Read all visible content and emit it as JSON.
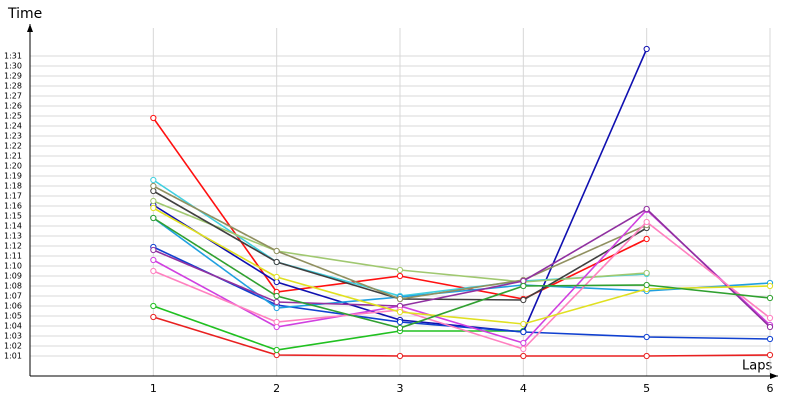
{
  "chart_data": {
    "type": "line",
    "y_label": "Time",
    "x_label": "Laps",
    "xlim": [
      0,
      6
    ],
    "xticks": [
      1,
      2,
      3,
      4,
      5,
      6
    ],
    "ylim": [
      59,
      93
    ],
    "yticks": [
      {
        "value": 61,
        "label": "1:01"
      },
      {
        "value": 62,
        "label": "1:02"
      },
      {
        "value": 63,
        "label": "1:03"
      },
      {
        "value": 64,
        "label": "1:04"
      },
      {
        "value": 65,
        "label": "1:05"
      },
      {
        "value": 66,
        "label": "1:06"
      },
      {
        "value": 67,
        "label": "1:07"
      },
      {
        "value": 68,
        "label": "1:08"
      },
      {
        "value": 69,
        "label": "1:09"
      },
      {
        "value": 70,
        "label": "1:10"
      },
      {
        "value": 71,
        "label": "1:11"
      },
      {
        "value": 72,
        "label": "1:12"
      },
      {
        "value": 73,
        "label": "1:13"
      },
      {
        "value": 74,
        "label": "1:14"
      },
      {
        "value": 75,
        "label": "1:15"
      },
      {
        "value": 76,
        "label": "1:16"
      },
      {
        "value": 77,
        "label": "1:17"
      },
      {
        "value": 78,
        "label": "1:18"
      },
      {
        "value": 79,
        "label": "1:19"
      },
      {
        "value": 80,
        "label": "1:20"
      },
      {
        "value": 81,
        "label": "1:21"
      },
      {
        "value": 82,
        "label": "1:22"
      },
      {
        "value": 83,
        "label": "1:23"
      },
      {
        "value": 84,
        "label": "1:24"
      },
      {
        "value": 85,
        "label": "1:25"
      },
      {
        "value": 86,
        "label": "1:26"
      },
      {
        "value": 87,
        "label": "1:27"
      },
      {
        "value": 88,
        "label": "1:28"
      },
      {
        "value": 89,
        "label": "1:29"
      },
      {
        "value": 90,
        "label": "1:30"
      },
      {
        "value": 91,
        "label": "1:31"
      }
    ],
    "grid": true,
    "x": [
      1,
      2,
      3,
      4,
      5,
      6
    ],
    "series": [
      {
        "color": "#e82020",
        "values": [
          64.9,
          61.1,
          61,
          61,
          61,
          61.1
        ]
      },
      {
        "color": "#20c020",
        "values": [
          66,
          61.6,
          63.5,
          63.5,
          null,
          null
        ]
      },
      {
        "color": "#ff1010",
        "values": [
          84.8,
          67.4,
          69,
          66.7,
          72.7,
          null
        ]
      },
      {
        "color": "#1010b0",
        "values": [
          76.1,
          68.4,
          64.6,
          63.4,
          91.7,
          null
        ]
      },
      {
        "color": "#1040d0",
        "values": [
          71.9,
          66.1,
          64.4,
          63.4,
          62.9,
          62.7
        ]
      },
      {
        "color": "#40d0e0",
        "values": [
          78.6,
          70.4,
          67,
          68.5,
          69.2,
          null
        ]
      },
      {
        "color": "#20a0e0",
        "values": [
          74.8,
          65.8,
          66.9,
          68.1,
          67.5,
          68.3
        ]
      },
      {
        "color": "#a0c870",
        "values": [
          76.5,
          71.5,
          69.6,
          68.4,
          69.3,
          null
        ]
      },
      {
        "color": "#404040",
        "values": [
          77.5,
          70.4,
          66.7,
          66.6,
          73.8,
          null
        ]
      },
      {
        "color": "#909060",
        "values": [
          78,
          71.5,
          66.7,
          68.6,
          74.1,
          null
        ]
      },
      {
        "color": "#d040e0",
        "values": [
          70.6,
          63.9,
          66,
          62.3,
          75.6,
          64.1
        ]
      },
      {
        "color": "#9030a0",
        "values": [
          71.6,
          66.4,
          66,
          68.5,
          75.7,
          63.9
        ]
      },
      {
        "color": "#ff80c0",
        "values": [
          69.5,
          64.4,
          65.6,
          61.7,
          74.4,
          64.8
        ]
      },
      {
        "color": "#e0e020",
        "values": [
          75.8,
          68.9,
          65.4,
          64.2,
          67.7,
          68
        ]
      },
      {
        "color": "#30a030",
        "values": [
          74.8,
          67,
          63.8,
          68,
          68.1,
          66.8
        ]
      }
    ]
  }
}
